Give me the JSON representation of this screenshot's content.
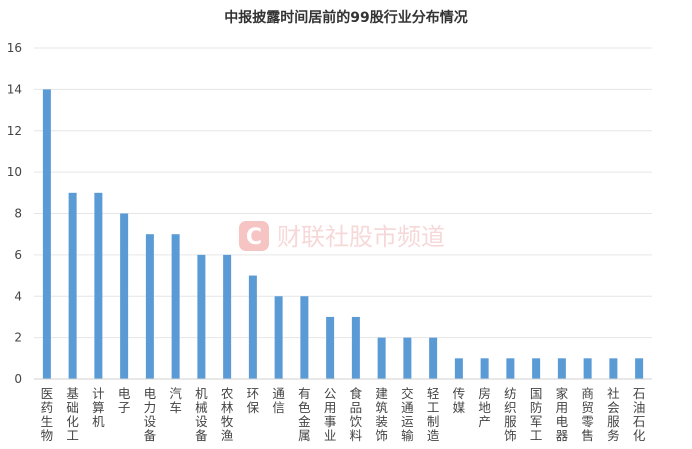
{
  "chart_data": {
    "type": "bar",
    "title": "中报披露时间居前的99股行业分布情况",
    "xlabel": "",
    "ylabel": "",
    "ylim": [
      0,
      16
    ],
    "yticks": [
      0,
      2,
      4,
      6,
      8,
      10,
      12,
      14,
      16
    ],
    "grid": true,
    "legend": "none",
    "bar_color": "#5b9bd5",
    "categories": [
      "医药生物",
      "基础化工",
      "计算机",
      "电子",
      "电力设备",
      "汽车",
      "机械设备",
      "农林牧渔",
      "环保",
      "通信",
      "有色金属",
      "公用事业",
      "食品饮料",
      "建筑装饰",
      "交通运输",
      "轻工制造",
      "传媒",
      "房地产",
      "纺织服饰",
      "国防军工",
      "家用电器",
      "商贸零售",
      "社会服务",
      "石油石化"
    ],
    "values": [
      14,
      9,
      9,
      8,
      7,
      7,
      6,
      6,
      5,
      4,
      4,
      3,
      3,
      2,
      2,
      2,
      1,
      1,
      1,
      1,
      1,
      1,
      1,
      1
    ]
  },
  "watermark": {
    "text": "财联社股市频道",
    "logo_letter": "C",
    "color": "#e87777"
  }
}
